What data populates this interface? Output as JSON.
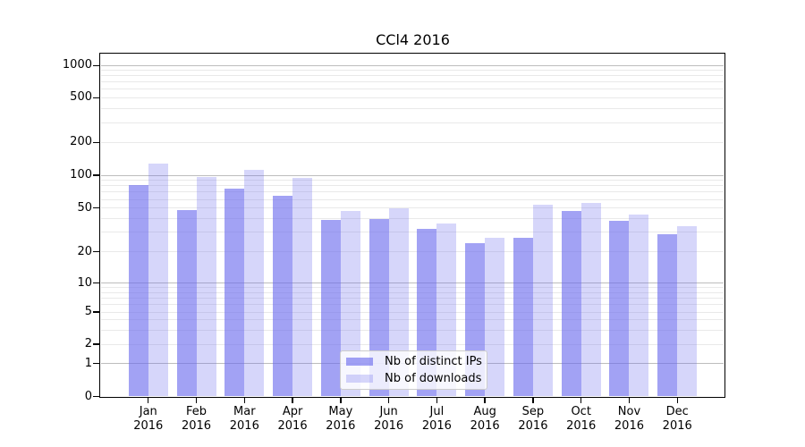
{
  "chart_data": {
    "type": "bar",
    "title": "CCl4 2016",
    "categories": [
      "Jan 2016",
      "Feb 2016",
      "Mar 2016",
      "Apr 2016",
      "May 2016",
      "Jun 2016",
      "Jul 2016",
      "Aug 2016",
      "Sep 2016",
      "Oct 2016",
      "Nov 2016",
      "Dec 2016"
    ],
    "series": [
      {
        "name": "Nb of distinct IPs",
        "values": [
          82,
          48,
          75,
          65,
          39,
          40,
          32,
          24,
          27,
          47,
          38,
          29
        ],
        "color": "#6969ed",
        "alpha": 0.62
      },
      {
        "name": "Nb of downloads",
        "values": [
          127,
          96,
          112,
          95,
          47,
          50,
          36,
          27,
          54,
          56,
          44,
          34
        ],
        "color": "#6969ed",
        "alpha": 0.27
      }
    ],
    "yscale": "symlog",
    "yticks": [
      0,
      1,
      2,
      5,
      10,
      20,
      50,
      100,
      200,
      500,
      1000
    ],
    "ylim": [
      0,
      1300
    ],
    "xlabel": "",
    "ylabel": "",
    "grid": true,
    "legend_position": "lower-center",
    "colors": {
      "bar_rendered_dark": "#a2a2f4",
      "bar_rendered_light": "#d7d7fb",
      "grid_major": "#bdbdbd",
      "grid_minor": "#e9e9e9",
      "axis": "#000000",
      "background": "#ffffff"
    }
  }
}
